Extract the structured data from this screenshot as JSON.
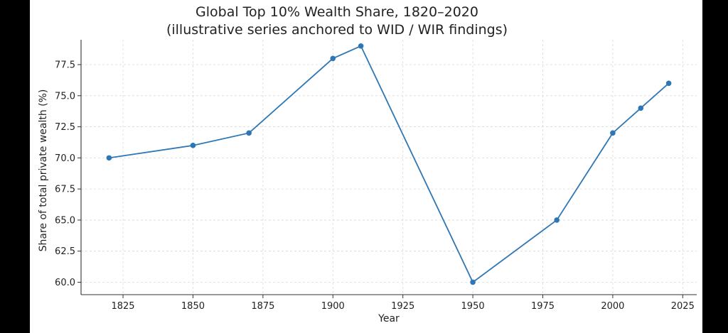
{
  "chart_data": {
    "type": "line",
    "title": "Global Top 10% Wealth Share, 1820–2020",
    "subtitle": "(illustrative series anchored to WID / WIR findings)",
    "xlabel": "Year",
    "ylabel": "Share of total private wealth (%)",
    "xlim": [
      1810,
      2030
    ],
    "ylim": [
      59,
      79.5
    ],
    "xticks": [
      1825,
      1850,
      1875,
      1900,
      1925,
      1950,
      1975,
      2000,
      2025
    ],
    "yticks": [
      60.0,
      62.5,
      65.0,
      67.5,
      70.0,
      72.5,
      75.0,
      77.5
    ],
    "grid": true,
    "series": [
      {
        "color": "#2f77b4",
        "x": [
          1820,
          1850,
          1870,
          1900,
          1910,
          1950,
          1980,
          2000,
          2010,
          2020
        ],
        "y": [
          70.0,
          71.0,
          72.0,
          78.0,
          79.0,
          60.0,
          65.0,
          72.0,
          74.0,
          76.0
        ]
      }
    ]
  }
}
